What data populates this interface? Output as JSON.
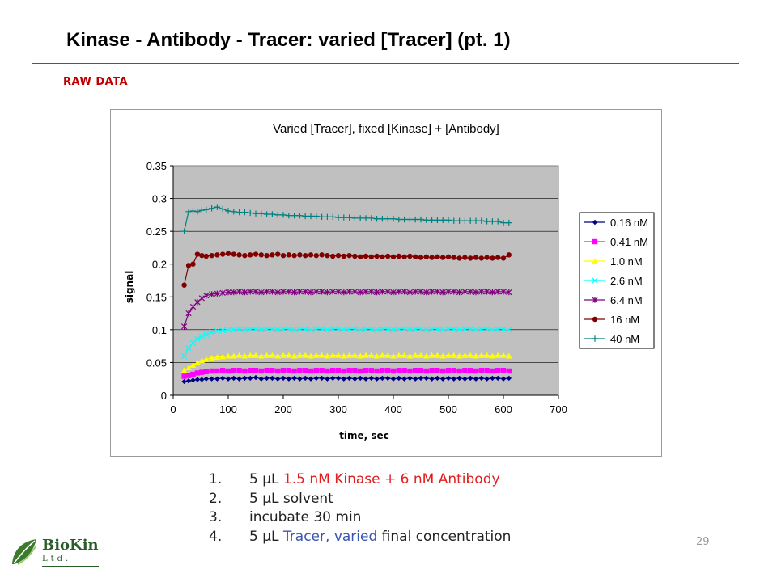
{
  "slide": {
    "title": "Kinase - Antibody - Tracer: varied [Tracer] (pt. 1)",
    "subtitle": "RAW DATA",
    "page_number": "29"
  },
  "logo": {
    "name": "BioKin",
    "sub": "Ltd."
  },
  "steps": [
    {
      "num": "1.",
      "a": "5 μL ",
      "b": "1.5 nM Kinase + 6 nM Antibody",
      "c": ""
    },
    {
      "num": "2.",
      "a": "5 μL solvent",
      "b": "",
      "c": ""
    },
    {
      "num": "3.",
      "a": "incubate 30 min",
      "b": "",
      "c": ""
    },
    {
      "num": "4.",
      "a": "5 μL ",
      "b": "Tracer, varied",
      "c": " final concentration"
    }
  ],
  "chart_data": {
    "type": "line",
    "title": "Varied [Tracer], fixed [Kinase] + [Antibody]",
    "xlabel": "time, sec",
    "ylabel": "signal",
    "xlim": [
      0,
      700
    ],
    "ylim": [
      0,
      0.35
    ],
    "xticks": [
      0,
      100,
      200,
      300,
      400,
      500,
      600,
      700
    ],
    "yticks": [
      0,
      0.05,
      0.1,
      0.15,
      0.2,
      0.25,
      0.3,
      0.35
    ],
    "plot_background": "#c0c0c0",
    "grid": "horizontal",
    "legend_position": "right",
    "x": [
      20,
      28,
      36,
      44,
      52,
      60,
      70,
      80,
      90,
      100,
      110,
      120,
      130,
      140,
      150,
      160,
      170,
      180,
      190,
      200,
      210,
      220,
      230,
      240,
      250,
      260,
      270,
      280,
      290,
      300,
      310,
      320,
      330,
      340,
      350,
      360,
      370,
      380,
      390,
      400,
      410,
      420,
      430,
      440,
      450,
      460,
      470,
      480,
      490,
      500,
      510,
      520,
      530,
      540,
      550,
      560,
      570,
      580,
      590,
      600,
      610
    ],
    "series": [
      {
        "name": "0.16 nM",
        "color": "#000080",
        "marker": "diamond",
        "values": [
          0.021,
          0.022,
          0.023,
          0.024,
          0.024,
          0.025,
          0.025,
          0.025,
          0.026,
          0.025,
          0.026,
          0.025,
          0.026,
          0.026,
          0.027,
          0.025,
          0.026,
          0.026,
          0.025,
          0.026,
          0.025,
          0.026,
          0.025,
          0.026,
          0.025,
          0.026,
          0.026,
          0.025,
          0.026,
          0.026,
          0.025,
          0.026,
          0.025,
          0.026,
          0.025,
          0.026,
          0.025,
          0.026,
          0.026,
          0.025,
          0.026,
          0.025,
          0.026,
          0.025,
          0.026,
          0.026,
          0.025,
          0.026,
          0.025,
          0.026,
          0.025,
          0.026,
          0.025,
          0.026,
          0.025,
          0.026,
          0.025,
          0.026,
          0.026,
          0.025,
          0.026
        ]
      },
      {
        "name": "0.41 nM",
        "color": "#ff00ff",
        "marker": "square",
        "values": [
          0.029,
          0.03,
          0.032,
          0.034,
          0.035,
          0.036,
          0.037,
          0.037,
          0.038,
          0.037,
          0.038,
          0.038,
          0.037,
          0.038,
          0.038,
          0.037,
          0.038,
          0.038,
          0.037,
          0.038,
          0.038,
          0.037,
          0.038,
          0.038,
          0.037,
          0.038,
          0.038,
          0.037,
          0.038,
          0.038,
          0.037,
          0.038,
          0.038,
          0.037,
          0.038,
          0.038,
          0.037,
          0.038,
          0.038,
          0.037,
          0.038,
          0.038,
          0.037,
          0.038,
          0.038,
          0.037,
          0.038,
          0.038,
          0.037,
          0.038,
          0.038,
          0.037,
          0.038,
          0.038,
          0.037,
          0.038,
          0.038,
          0.037,
          0.038,
          0.038,
          0.037
        ]
      },
      {
        "name": "1.0 nM",
        "color": "#ffff00",
        "marker": "triangle",
        "values": [
          0.038,
          0.042,
          0.046,
          0.05,
          0.053,
          0.055,
          0.057,
          0.058,
          0.059,
          0.06,
          0.06,
          0.061,
          0.06,
          0.061,
          0.061,
          0.06,
          0.061,
          0.061,
          0.06,
          0.061,
          0.061,
          0.06,
          0.061,
          0.061,
          0.06,
          0.061,
          0.061,
          0.06,
          0.061,
          0.061,
          0.06,
          0.061,
          0.061,
          0.06,
          0.061,
          0.061,
          0.06,
          0.061,
          0.061,
          0.06,
          0.061,
          0.061,
          0.06,
          0.061,
          0.061,
          0.06,
          0.061,
          0.061,
          0.06,
          0.061,
          0.061,
          0.06,
          0.061,
          0.061,
          0.06,
          0.061,
          0.061,
          0.06,
          0.061,
          0.061,
          0.06
        ]
      },
      {
        "name": "2.6 nM",
        "color": "#00ffff",
        "marker": "x",
        "values": [
          0.06,
          0.072,
          0.08,
          0.086,
          0.09,
          0.093,
          0.096,
          0.098,
          0.099,
          0.1,
          0.1,
          0.101,
          0.1,
          0.101,
          0.101,
          0.1,
          0.101,
          0.101,
          0.1,
          0.101,
          0.101,
          0.1,
          0.101,
          0.101,
          0.1,
          0.101,
          0.101,
          0.1,
          0.101,
          0.101,
          0.1,
          0.101,
          0.101,
          0.1,
          0.101,
          0.101,
          0.1,
          0.101,
          0.101,
          0.1,
          0.101,
          0.101,
          0.1,
          0.101,
          0.101,
          0.1,
          0.101,
          0.101,
          0.1,
          0.101,
          0.101,
          0.1,
          0.101,
          0.101,
          0.1,
          0.101,
          0.101,
          0.1,
          0.101,
          0.101,
          0.1
        ]
      },
      {
        "name": "6.4 nM",
        "color": "#800080",
        "marker": "star",
        "values": [
          0.105,
          0.125,
          0.135,
          0.142,
          0.148,
          0.152,
          0.154,
          0.155,
          0.156,
          0.157,
          0.157,
          0.158,
          0.157,
          0.158,
          0.158,
          0.157,
          0.158,
          0.158,
          0.157,
          0.158,
          0.158,
          0.157,
          0.158,
          0.158,
          0.157,
          0.158,
          0.158,
          0.157,
          0.158,
          0.158,
          0.157,
          0.158,
          0.158,
          0.157,
          0.158,
          0.158,
          0.157,
          0.158,
          0.158,
          0.157,
          0.158,
          0.158,
          0.157,
          0.158,
          0.158,
          0.157,
          0.158,
          0.158,
          0.157,
          0.158,
          0.158,
          0.157,
          0.158,
          0.158,
          0.157,
          0.158,
          0.158,
          0.157,
          0.158,
          0.158,
          0.157
        ]
      },
      {
        "name": "16 nM",
        "color": "#800000",
        "marker": "circle",
        "values": [
          0.168,
          0.198,
          0.2,
          0.215,
          0.213,
          0.212,
          0.213,
          0.214,
          0.215,
          0.216,
          0.215,
          0.214,
          0.213,
          0.214,
          0.215,
          0.214,
          0.213,
          0.214,
          0.215,
          0.213,
          0.214,
          0.213,
          0.214,
          0.213,
          0.214,
          0.213,
          0.214,
          0.213,
          0.212,
          0.213,
          0.212,
          0.213,
          0.212,
          0.211,
          0.212,
          0.211,
          0.212,
          0.211,
          0.212,
          0.211,
          0.212,
          0.211,
          0.212,
          0.211,
          0.21,
          0.211,
          0.21,
          0.211,
          0.21,
          0.211,
          0.21,
          0.209,
          0.21,
          0.209,
          0.21,
          0.209,
          0.21,
          0.209,
          0.21,
          0.209,
          0.214
        ]
      },
      {
        "name": "40 nM",
        "color": "#008080",
        "marker": "plus",
        "values": [
          0.25,
          0.28,
          0.281,
          0.28,
          0.282,
          0.283,
          0.285,
          0.287,
          0.284,
          0.281,
          0.28,
          0.279,
          0.279,
          0.278,
          0.277,
          0.277,
          0.276,
          0.276,
          0.275,
          0.275,
          0.274,
          0.274,
          0.274,
          0.273,
          0.273,
          0.273,
          0.272,
          0.272,
          0.272,
          0.271,
          0.271,
          0.271,
          0.27,
          0.27,
          0.27,
          0.27,
          0.269,
          0.269,
          0.269,
          0.269,
          0.268,
          0.268,
          0.268,
          0.268,
          0.268,
          0.267,
          0.267,
          0.267,
          0.267,
          0.267,
          0.266,
          0.266,
          0.266,
          0.266,
          0.266,
          0.266,
          0.265,
          0.265,
          0.265,
          0.263,
          0.263
        ]
      }
    ]
  }
}
